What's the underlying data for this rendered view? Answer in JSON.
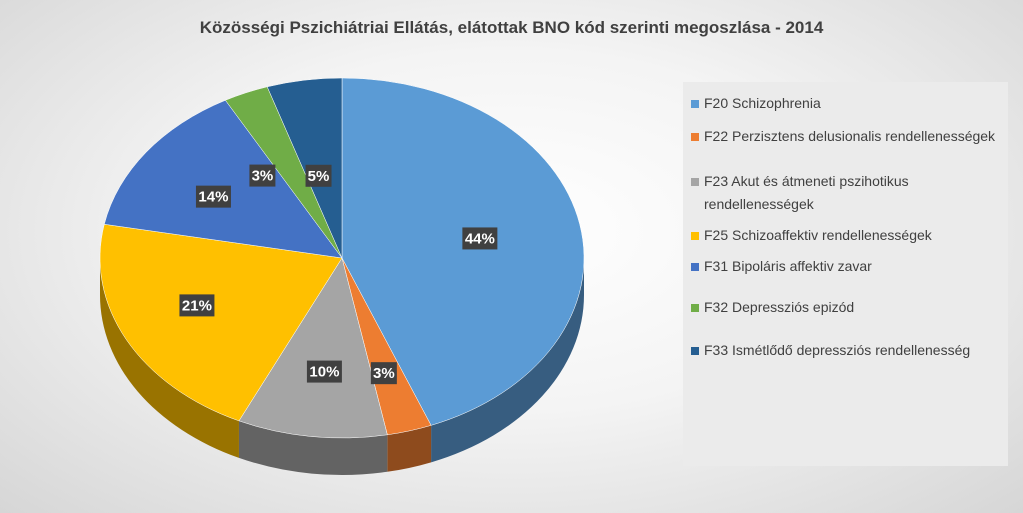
{
  "chart_data": {
    "type": "pie",
    "title": "Közösségi Pszichiátriai Ellátás, elátottak BNO kód szerinti megoszlása - 2014",
    "legend_position": "right",
    "slices": [
      {
        "label": "F20 Schizophrenia",
        "value": 44,
        "label_text": "44%",
        "color": "#5b9bd5"
      },
      {
        "label": "F22 Perzisztens delusionalis rendellenességek",
        "value": 3,
        "label_text": "3%",
        "color": "#ed7d31"
      },
      {
        "label": "F23 Akut és átmeneti pszihotikus rendellenességek",
        "value": 10,
        "label_text": "10%",
        "color": "#a5a5a5"
      },
      {
        "label": "F25 Schizoaffektiv rendellenességek",
        "value": 21,
        "label_text": "21%",
        "color": "#ffc000"
      },
      {
        "label": "F31 Bipoláris affektiv zavar",
        "value": 14,
        "label_text": "14%",
        "color": "#4472c4"
      },
      {
        "label": "F32 Depressziós epizód",
        "value": 3,
        "label_text": "3%",
        "color": "#70ad47"
      },
      {
        "label": "F33 Ismétlődő depressziós rendellenesség",
        "value": 5,
        "label_text": "5%",
        "color": "#255e91"
      }
    ]
  }
}
